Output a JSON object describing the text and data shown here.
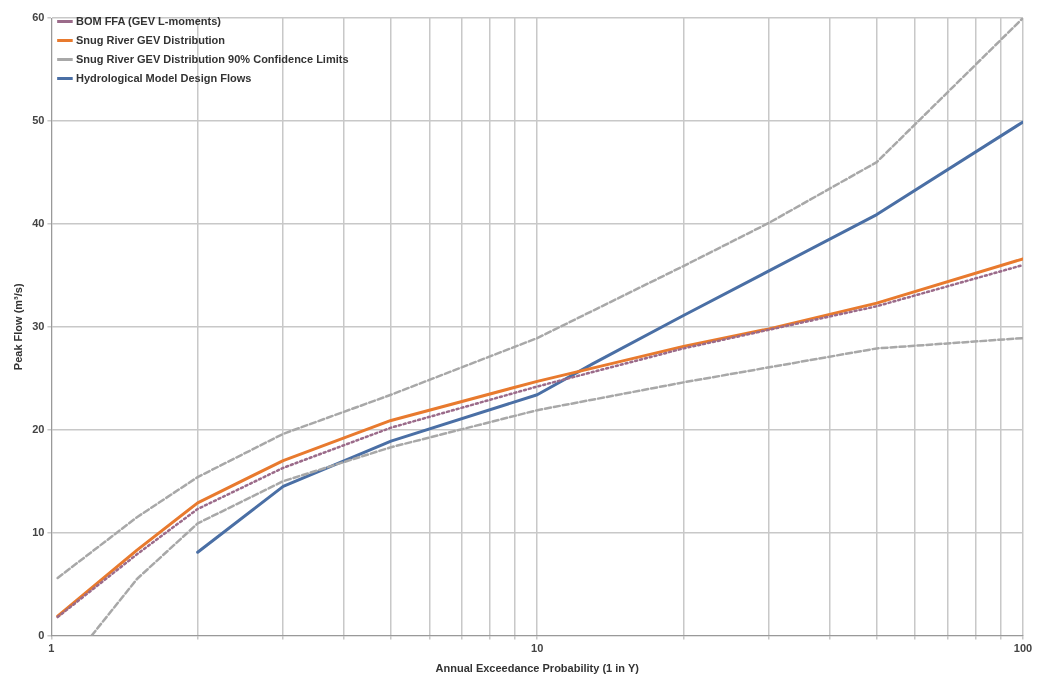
{
  "chart_data": {
    "type": "line",
    "xlabel": "Annual Exceedance Probability (1 in Y)",
    "ylabel": "Peak Flow (m³/s)",
    "log": "x",
    "xlim": [
      1,
      100
    ],
    "ylim": [
      0,
      60
    ],
    "xticks": [
      1,
      {
        "value": 2,
        "label": null
      },
      {
        "value": 3,
        "label": null
      },
      {
        "value": 4,
        "label": null
      },
      {
        "value": 5,
        "label": null
      },
      {
        "value": 6,
        "label": null
      },
      {
        "value": 7,
        "label": null
      },
      {
        "value": 8,
        "label": null
      },
      {
        "value": 9,
        "label": null
      },
      10,
      {
        "value": 20,
        "label": null
      },
      {
        "value": 30,
        "label": null
      },
      {
        "value": 40,
        "label": null
      },
      {
        "value": 50,
        "label": null
      },
      {
        "value": 60,
        "label": null
      },
      {
        "value": 70,
        "label": null
      },
      {
        "value": 80,
        "label": null
      },
      {
        "value": 90,
        "label": null
      },
      100
    ],
    "yticks": [
      0,
      10,
      20,
      30,
      40,
      50,
      60
    ],
    "grid": true,
    "legend": "top left",
    "marker": "none",
    "series": [
      {
        "name": "BOM FFA (GEV L-moments)",
        "color": "#9b6b8a",
        "line_style": "dotted",
        "x": [
          1.03,
          1.5,
          2,
          3,
          5,
          10,
          20,
          50,
          100
        ],
        "values": [
          1.8,
          7.9,
          12.3,
          16.3,
          20.2,
          24.2,
          27.9,
          32.0,
          36.0
        ]
      },
      {
        "name": "Snug River GEV Distribution",
        "color": "#e87a2e",
        "line_style": "solid",
        "x": [
          1.03,
          1.5,
          2,
          3,
          5,
          10,
          20,
          30,
          50,
          100
        ],
        "values": [
          1.9,
          8.3,
          12.9,
          17.0,
          20.9,
          24.7,
          28.1,
          29.8,
          32.3,
          36.6
        ]
      },
      {
        "name": "Snug River GEV Distribution 90% Confidence Limits",
        "color": "#a8a8a8",
        "line_style": "dashed",
        "x": [
          1.03,
          1.5,
          2,
          3,
          5,
          10,
          20,
          30,
          50,
          100
        ],
        "values": [
          5.6,
          11.5,
          15.4,
          19.6,
          23.4,
          28.9,
          35.9,
          40.1,
          46.0,
          60.0
        ]
      },
      {
        "color": "#a8a8a8",
        "line_style": "dashed",
        "x": [
          1.21,
          1.5,
          2,
          3,
          5,
          10,
          20,
          50,
          100
        ],
        "values": [
          0,
          5.5,
          10.9,
          15.0,
          18.3,
          21.9,
          24.6,
          27.9,
          28.9
        ]
      },
      {
        "name": "Hydrological Model Design Flows",
        "color": "#4a6fa5",
        "line_style": "solid",
        "x": [
          2,
          3,
          5,
          10,
          13,
          20,
          50,
          100
        ],
        "values": [
          8.1,
          14.5,
          18.9,
          23.4,
          26.4,
          31.1,
          40.9,
          49.9
        ]
      }
    ]
  }
}
